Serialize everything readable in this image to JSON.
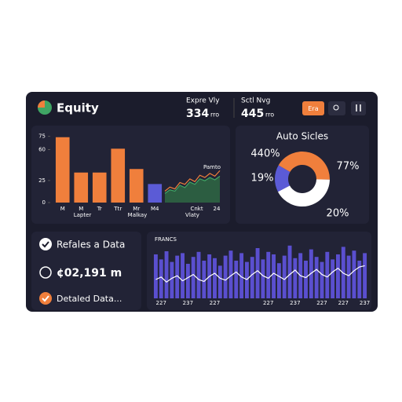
{
  "header": {
    "title": "Equity",
    "stats": [
      {
        "label": "Expre Vly",
        "value": "334",
        "unit": "rro"
      },
      {
        "label": "Sctl Nvg",
        "value": "445",
        "unit": "rro"
      }
    ],
    "button": "Era"
  },
  "side": {
    "items": [
      "Refales a Data",
      "¢02,191 m",
      "Detaled Data..."
    ]
  },
  "chart_data": [
    {
      "type": "bar",
      "categories": [
        "M",
        "M",
        "Tr",
        "Ttr",
        "Mr",
        "M4"
      ],
      "values": [
        74,
        34,
        34,
        61,
        38,
        21
      ],
      "colors": [
        "#f07f3c",
        "#f07f3c",
        "#f07f3c",
        "#f07f3c",
        "#f07f3c",
        "#5b5bd6"
      ],
      "ylim": [
        0,
        80
      ],
      "yticks": [
        0,
        25,
        60,
        75
      ],
      "legend": [
        {
          "name": "Lapter",
          "color": "#5b7be0"
        },
        {
          "name": "Malkay",
          "color": "#f07f3c"
        },
        {
          "name": "Vlaty",
          "color": "#3fa564"
        }
      ]
    },
    {
      "type": "area",
      "title": "Pamto",
      "categories": [
        null,
        null,
        null,
        null,
        null,
        null,
        null,
        "Cnkt",
        null,
        null,
        null,
        "24"
      ],
      "ylim": [
        0,
        100
      ],
      "series": [
        {
          "color": "#2f6b45",
          "values": [
            20,
            28,
            25,
            38,
            33,
            45,
            40,
            52,
            48,
            55,
            50,
            58
          ]
        },
        {
          "color": "#f07f3c",
          "values": [
            25,
            34,
            30,
            44,
            40,
            52,
            46,
            60,
            55,
            64,
            58,
            70
          ]
        }
      ]
    },
    {
      "type": "donut",
      "title": "Auto Sicles",
      "values": [
        42,
        42,
        16
      ],
      "colors": [
        "#f07f3c",
        "#ffffff",
        "#5b5bd6"
      ],
      "annotations": [
        "440%",
        "19%",
        "77%",
        "20%"
      ]
    },
    {
      "type": "bar",
      "title": "FRANCS",
      "color": "#5a4fcf",
      "ylim": [
        0,
        100
      ],
      "categories": [
        null,
        "227",
        null,
        null,
        null,
        null,
        "237",
        null,
        null,
        null,
        null,
        "227",
        null,
        null,
        null,
        null,
        null,
        null,
        null,
        null,
        null,
        "227",
        null,
        null,
        null,
        null,
        "237",
        null,
        null,
        null,
        null,
        "227",
        null,
        null,
        null,
        "227",
        null,
        null,
        null,
        "237"
      ],
      "values": [
        70,
        62,
        75,
        58,
        68,
        72,
        55,
        66,
        74,
        60,
        70,
        64,
        52,
        68,
        76,
        60,
        72,
        58,
        66,
        80,
        62,
        74,
        70,
        56,
        68,
        84,
        64,
        72,
        60,
        78,
        66,
        58,
        74,
        62,
        70,
        82,
        68,
        76,
        60,
        72
      ],
      "line": {
        "color": "#ffffff",
        "values": [
          30,
          34,
          26,
          32,
          36,
          28,
          33,
          38,
          30,
          27,
          35,
          40,
          32,
          29,
          36,
          42,
          34,
          30,
          38,
          44,
          36,
          32,
          40,
          35,
          30,
          38,
          45,
          36,
          33,
          40,
          46,
          38,
          34,
          42,
          48,
          40,
          36,
          44,
          50,
          52
        ]
      }
    }
  ]
}
